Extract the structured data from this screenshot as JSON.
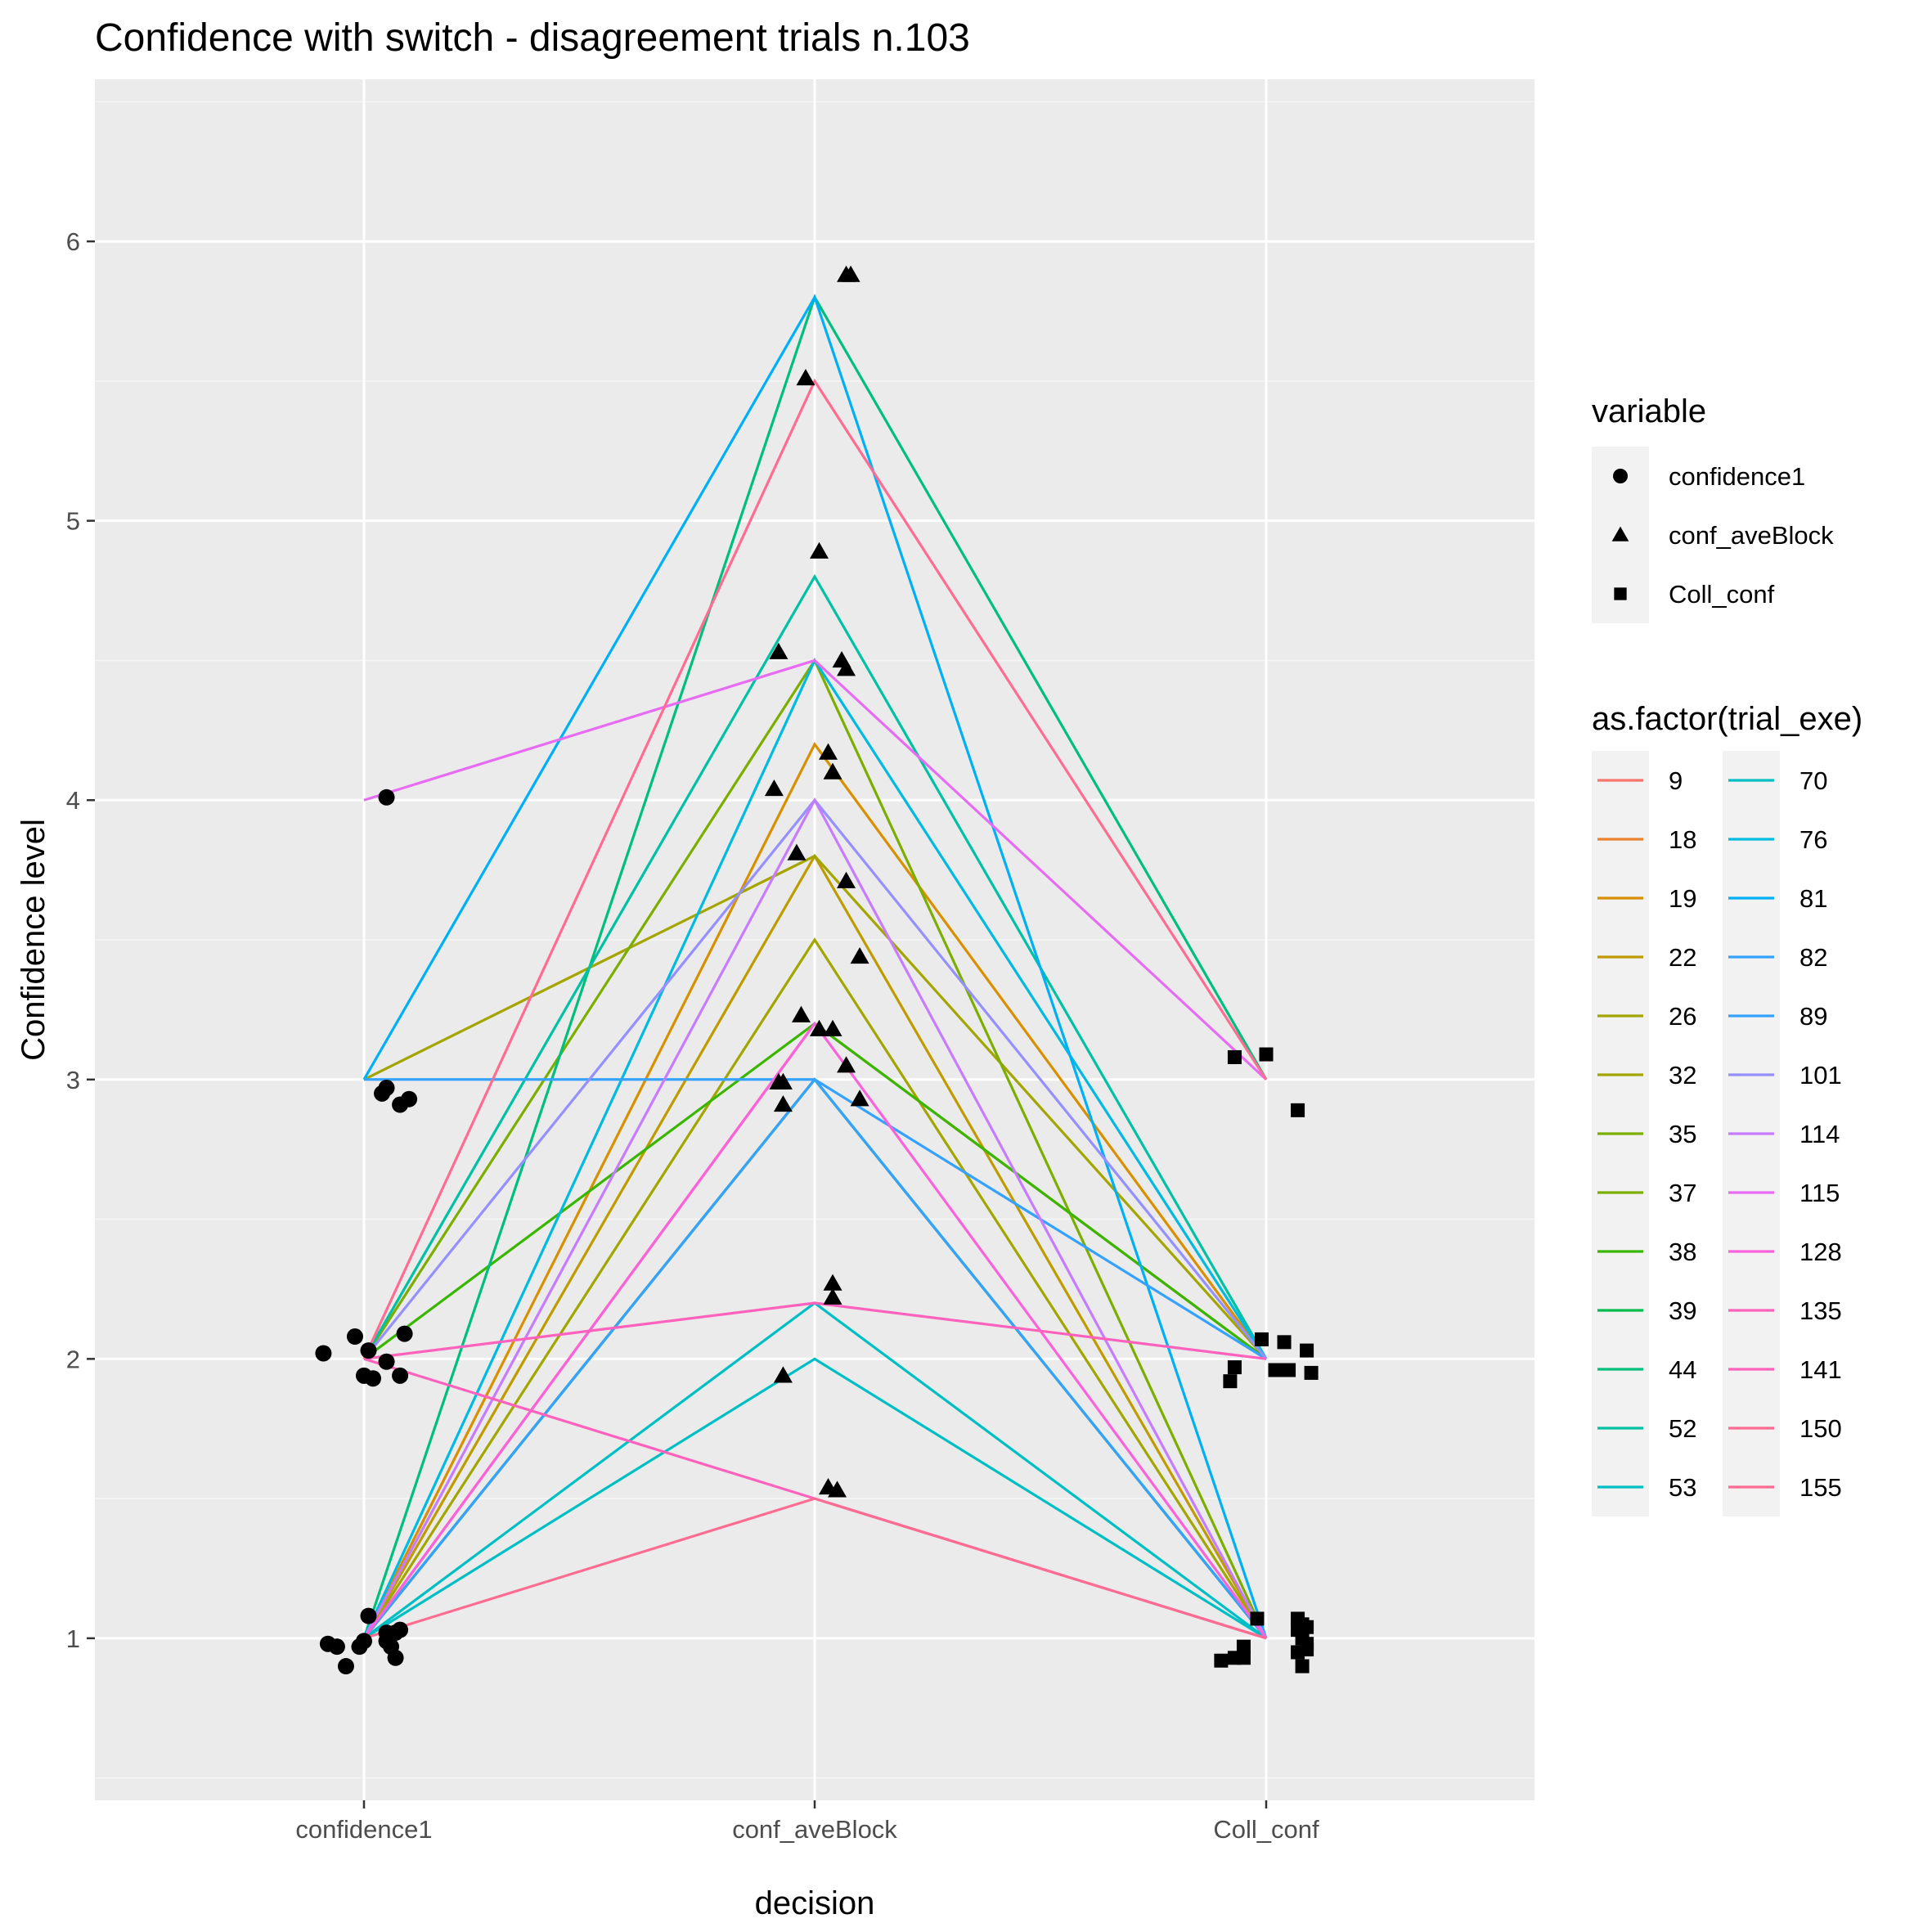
{
  "chart_data": {
    "type": "line",
    "title": "Confidence with switch - disagreement trials n.103",
    "xlabel": "decision",
    "ylabel": "Confidence level",
    "categories": [
      "confidence1",
      "conf_aveBlock",
      "Coll_conf"
    ],
    "ylim": [
      0.42,
      6.58
    ],
    "yticks": [
      1,
      2,
      3,
      4,
      5,
      6
    ],
    "grid": true,
    "legend_position": "right",
    "shape_legend": {
      "title": "variable",
      "items": [
        {
          "label": "confidence1",
          "shape": "circle"
        },
        {
          "label": "conf_aveBlock",
          "shape": "triangle"
        },
        {
          "label": "Coll_conf",
          "shape": "square"
        }
      ]
    },
    "color_legend": {
      "title": "as.factor(trial_exe)",
      "items": [
        {
          "label": "9",
          "color": "#F8766D"
        },
        {
          "label": "18",
          "color": "#EA8331"
        },
        {
          "label": "19",
          "color": "#D89000"
        },
        {
          "label": "22",
          "color": "#C09B00"
        },
        {
          "label": "26",
          "color": "#A3A500"
        },
        {
          "label": "32",
          "color": "#A3A500"
        },
        {
          "label": "35",
          "color": "#7CAE00"
        },
        {
          "label": "37",
          "color": "#7CAE00"
        },
        {
          "label": "38",
          "color": "#39B600"
        },
        {
          "label": "39",
          "color": "#00BB4E"
        },
        {
          "label": "44",
          "color": "#00BF7D"
        },
        {
          "label": "52",
          "color": "#00C1A3"
        },
        {
          "label": "53",
          "color": "#00BFC4"
        },
        {
          "label": "70",
          "color": "#00BFC4"
        },
        {
          "label": "76",
          "color": "#00BAE0"
        },
        {
          "label": "81",
          "color": "#00B0F6"
        },
        {
          "label": "82",
          "color": "#35A2FF"
        },
        {
          "label": "89",
          "color": "#35A2FF"
        },
        {
          "label": "101",
          "color": "#9590FF"
        },
        {
          "label": "114",
          "color": "#C77CFF"
        },
        {
          "label": "115",
          "color": "#E76BF3"
        },
        {
          "label": "128",
          "color": "#FA62DB"
        },
        {
          "label": "135",
          "color": "#FF62BC"
        },
        {
          "label": "141",
          "color": "#FF62BC"
        },
        {
          "label": "150",
          "color": "#FF6C91"
        },
        {
          "label": "155",
          "color": "#FF6C91"
        }
      ]
    },
    "series": [
      {
        "name": "9",
        "values": [
          1,
          3.2,
          2
        ]
      },
      {
        "name": "18",
        "values": [
          1,
          3.0,
          1
        ]
      },
      {
        "name": "19",
        "values": [
          1,
          4.2,
          2
        ]
      },
      {
        "name": "22",
        "values": [
          1,
          3.8,
          1
        ]
      },
      {
        "name": "26",
        "values": [
          1,
          3.5,
          1
        ]
      },
      {
        "name": "32",
        "values": [
          3,
          3.8,
          2
        ]
      },
      {
        "name": "35",
        "values": [
          2,
          4.5,
          1
        ]
      },
      {
        "name": "37",
        "values": [
          1,
          3.0,
          1
        ]
      },
      {
        "name": "38",
        "values": [
          2,
          3.2,
          2
        ]
      },
      {
        "name": "39",
        "values": [
          1,
          3.0,
          1
        ]
      },
      {
        "name": "44",
        "values": [
          1,
          5.8,
          3
        ]
      },
      {
        "name": "52",
        "values": [
          2,
          4.8,
          2
        ]
      },
      {
        "name": "53",
        "values": [
          1,
          2.2,
          1
        ]
      },
      {
        "name": "70",
        "values": [
          1,
          2.0,
          1
        ]
      },
      {
        "name": "76",
        "values": [
          1,
          4.5,
          2
        ]
      },
      {
        "name": "81",
        "values": [
          3,
          5.8,
          1
        ]
      },
      {
        "name": "82",
        "values": [
          3,
          3.0,
          2
        ]
      },
      {
        "name": "89",
        "values": [
          1,
          3.0,
          1
        ]
      },
      {
        "name": "101",
        "values": [
          2,
          4.0,
          2
        ]
      },
      {
        "name": "114",
        "values": [
          1,
          4.0,
          1
        ]
      },
      {
        "name": "115",
        "values": [
          4,
          4.5,
          3
        ]
      },
      {
        "name": "128",
        "values": [
          1,
          3.2,
          1
        ]
      },
      {
        "name": "135",
        "values": [
          2,
          2.2,
          2
        ]
      },
      {
        "name": "141",
        "values": [
          2,
          1.5,
          1
        ]
      },
      {
        "name": "150",
        "values": [
          1,
          1.5,
          1
        ]
      },
      {
        "name": "155",
        "values": [
          2,
          5.5,
          3
        ]
      }
    ],
    "jittered_points": {
      "confidence1": [
        [
          0.05,
          4.01
        ],
        [
          0.05,
          2.97
        ],
        [
          0.04,
          2.95
        ],
        [
          0.08,
          2.91
        ],
        [
          0.1,
          2.93
        ],
        [
          -0.09,
          2.02
        ],
        [
          -0.02,
          2.08
        ],
        [
          0.01,
          2.03
        ],
        [
          0.05,
          1.99
        ],
        [
          0.09,
          2.09
        ],
        [
          0.0,
          1.94
        ],
        [
          0.02,
          1.93
        ],
        [
          0.08,
          1.94
        ],
        [
          0.01,
          1.08
        ],
        [
          0.05,
          1.02
        ],
        [
          0.07,
          1.02
        ],
        [
          0.08,
          1.03
        ],
        [
          0.0,
          0.99
        ],
        [
          0.05,
          0.99
        ],
        [
          -0.01,
          0.97
        ],
        [
          0.06,
          0.97
        ],
        [
          -0.08,
          0.98
        ],
        [
          -0.06,
          0.97
        ],
        [
          -0.04,
          0.9
        ],
        [
          0.07,
          0.93
        ]
      ],
      "conf_aveBlock": [
        [
          0.07,
          5.88
        ],
        [
          0.08,
          5.88
        ],
        [
          -0.02,
          5.51
        ],
        [
          0.01,
          4.89
        ],
        [
          -0.08,
          4.53
        ],
        [
          0.06,
          4.5
        ],
        [
          0.07,
          4.47
        ],
        [
          0.03,
          4.17
        ],
        [
          0.04,
          4.1
        ],
        [
          -0.09,
          4.04
        ],
        [
          -0.04,
          3.81
        ],
        [
          0.07,
          3.71
        ],
        [
          0.1,
          3.44
        ],
        [
          -0.03,
          3.23
        ],
        [
          0.01,
          3.18
        ],
        [
          0.04,
          3.18
        ],
        [
          0.07,
          3.05
        ],
        [
          -0.08,
          2.99
        ],
        [
          -0.07,
          2.99
        ],
        [
          -0.07,
          2.91
        ],
        [
          0.1,
          2.93
        ],
        [
          0.04,
          2.27
        ],
        [
          0.04,
          2.22
        ],
        [
          -0.07,
          1.94
        ],
        [
          0.03,
          1.54
        ],
        [
          0.05,
          1.53
        ]
      ],
      "Coll_conf": [
        [
          -0.07,
          3.08
        ],
        [
          0.0,
          3.09
        ],
        [
          0.07,
          2.89
        ],
        [
          -0.01,
          2.07
        ],
        [
          0.04,
          2.06
        ],
        [
          0.09,
          2.03
        ],
        [
          -0.07,
          1.97
        ],
        [
          -0.08,
          1.92
        ],
        [
          0.02,
          1.96
        ],
        [
          0.05,
          1.96
        ],
        [
          0.1,
          1.95
        ],
        [
          -0.02,
          1.07
        ],
        [
          0.07,
          1.07
        ],
        [
          0.08,
          1.05
        ],
        [
          0.07,
          1.03
        ],
        [
          0.09,
          1.04
        ],
        [
          0.08,
          1.0
        ],
        [
          0.09,
          0.98
        ],
        [
          -0.05,
          0.97
        ],
        [
          0.07,
          0.95
        ],
        [
          0.09,
          0.96
        ],
        [
          -0.05,
          0.93
        ],
        [
          -0.07,
          0.93
        ],
        [
          -0.1,
          0.92
        ],
        [
          0.08,
          0.9
        ]
      ]
    }
  }
}
